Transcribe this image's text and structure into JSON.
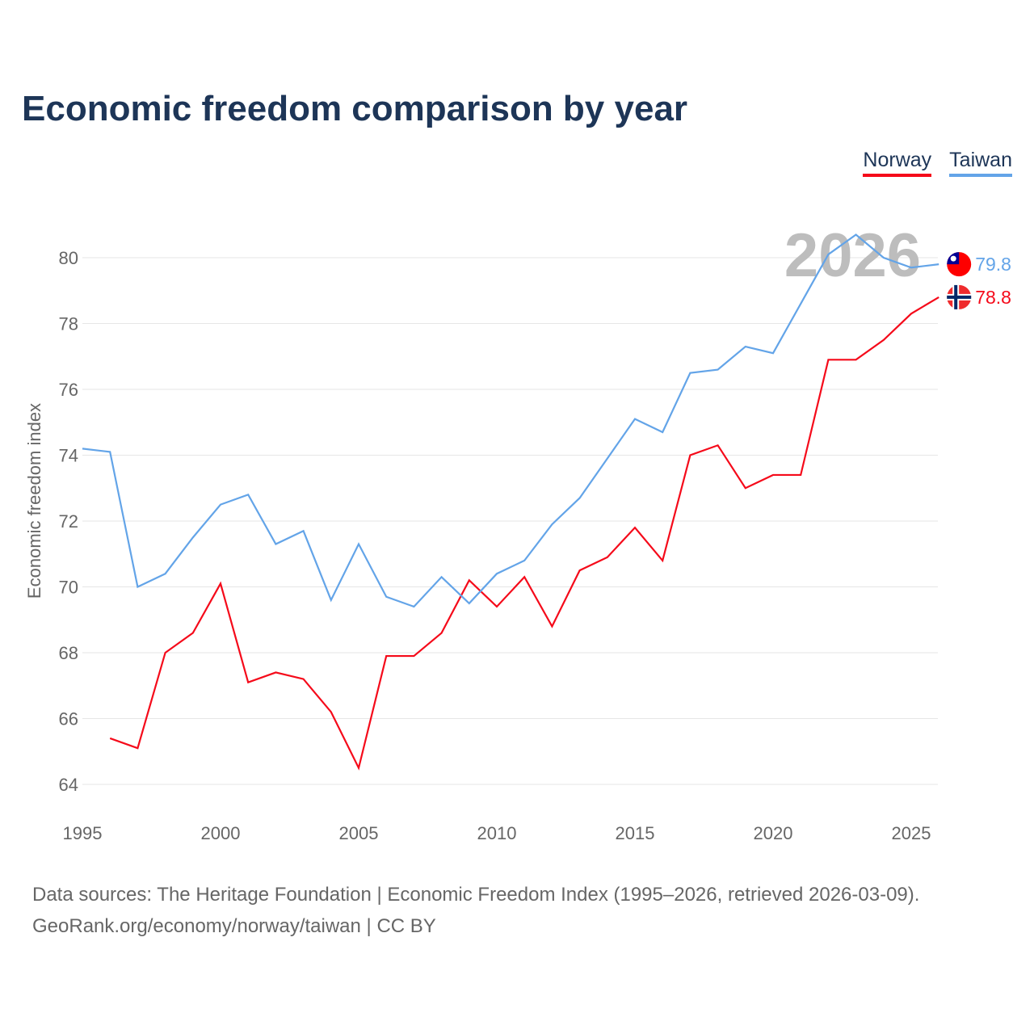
{
  "title": "Economic freedom comparison by year",
  "legend": [
    {
      "name": "Norway",
      "color": "#f50a1a"
    },
    {
      "name": "Taiwan",
      "color": "#63a4e8"
    }
  ],
  "footer": {
    "line1": "Data sources: The Heritage Foundation | Economic Freedom Index (1995–2026, retrieved 2026-03-09).",
    "line2": "GeoRank.org/economy/norway/taiwan | CC BY"
  },
  "chart_data": {
    "type": "line",
    "title": "Economic freedom comparison by year",
    "ylabel": "Economic freedom index",
    "xlabel": "",
    "xlim": [
      1995,
      2026
    ],
    "ylim": [
      63,
      81.5
    ],
    "yticks": [
      64,
      66,
      68,
      70,
      72,
      74,
      76,
      78,
      80
    ],
    "xticks": [
      1995,
      2000,
      2005,
      2010,
      2015,
      2020,
      2025
    ],
    "watermark_year": "2026",
    "legend_position": "top-right",
    "series": [
      {
        "name": "Norway",
        "color": "#f50a1a",
        "end_label": "78.8",
        "flag": "norway-flag",
        "x": [
          1996,
          1997,
          1998,
          1999,
          2000,
          2001,
          2002,
          2003,
          2004,
          2005,
          2006,
          2007,
          2008,
          2009,
          2010,
          2011,
          2012,
          2013,
          2014,
          2015,
          2016,
          2017,
          2018,
          2019,
          2020,
          2021,
          2022,
          2023,
          2024,
          2025,
          2026
        ],
        "values": [
          65.4,
          65.1,
          68.0,
          68.6,
          70.1,
          67.1,
          67.4,
          67.2,
          66.2,
          64.5,
          67.9,
          67.9,
          68.6,
          70.2,
          69.4,
          70.3,
          68.8,
          70.5,
          70.9,
          71.8,
          70.8,
          74.0,
          74.3,
          73.0,
          73.4,
          73.4,
          76.9,
          76.9,
          77.5,
          78.3,
          78.8
        ]
      },
      {
        "name": "Taiwan",
        "color": "#63a4e8",
        "end_label": "79.8",
        "flag": "taiwan-flag",
        "x": [
          1995,
          1996,
          1997,
          1998,
          1999,
          2000,
          2001,
          2002,
          2003,
          2004,
          2005,
          2006,
          2007,
          2008,
          2009,
          2010,
          2011,
          2012,
          2013,
          2014,
          2015,
          2016,
          2017,
          2018,
          2019,
          2020,
          2021,
          2022,
          2023,
          2024,
          2025,
          2026
        ],
        "values": [
          74.2,
          74.1,
          70.0,
          70.4,
          71.5,
          72.5,
          72.8,
          71.3,
          71.7,
          69.6,
          71.3,
          69.7,
          69.4,
          70.3,
          69.5,
          70.4,
          70.8,
          71.9,
          72.7,
          73.9,
          75.1,
          74.7,
          76.5,
          76.6,
          77.3,
          77.1,
          78.6,
          80.1,
          80.7,
          80.0,
          79.7,
          79.8
        ]
      }
    ]
  }
}
